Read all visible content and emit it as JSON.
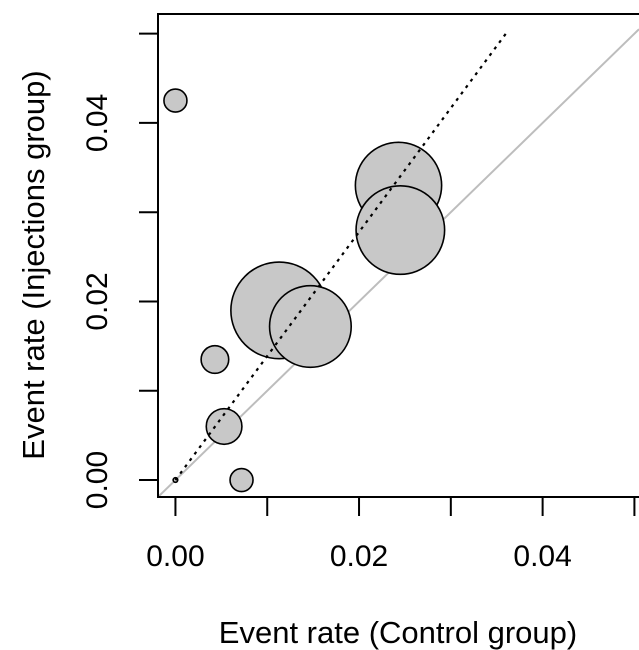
{
  "chart_data": {
    "type": "scatter",
    "title": "",
    "xlabel": "Event rate (Control group)",
    "ylabel": "Event rate (Injections group)",
    "xlim": [
      -0.0019,
      0.0505
    ],
    "ylim": [
      -0.0019,
      0.0522
    ],
    "x_ticks": [
      0.0,
      0.01,
      0.02,
      0.03,
      0.04,
      0.05
    ],
    "x_tick_labels": [
      "0.00",
      "",
      "0.02",
      "",
      "0.04",
      ""
    ],
    "y_ticks": [
      0.0,
      0.01,
      0.02,
      0.03,
      0.04,
      0.05
    ],
    "y_tick_labels": [
      "0.00",
      "",
      "0.02",
      "",
      "0.04",
      ""
    ],
    "grid": false,
    "box": "full",
    "point_fill": "#c8c8c8",
    "point_stroke": "#000000",
    "identity_line_color": "#bdbdbd",
    "fit_line_color": "#000000",
    "points": [
      {
        "x": 0.0,
        "y": 0.0425,
        "size": 1.0
      },
      {
        "x": 0.0,
        "y": 0.0,
        "size": 0.2
      },
      {
        "x": 0.0043,
        "y": 0.0135,
        "size": 1.2
      },
      {
        "x": 0.0072,
        "y": 0.0,
        "size": 1.0
      },
      {
        "x": 0.0053,
        "y": 0.006,
        "size": 1.55
      },
      {
        "x": 0.0113,
        "y": 0.019,
        "size": 4.2
      },
      {
        "x": 0.0147,
        "y": 0.0172,
        "size": 3.55
      },
      {
        "x": 0.0243,
        "y": 0.033,
        "size": 3.75
      },
      {
        "x": 0.0245,
        "y": 0.028,
        "size": 3.85
      }
    ],
    "identity_line": [
      [
        -0.0019,
        -0.0019
      ],
      [
        0.0505,
        0.0505
      ]
    ],
    "fit_line": [
      [
        0.0,
        0.0
      ],
      [
        0.036,
        0.05
      ]
    ]
  }
}
